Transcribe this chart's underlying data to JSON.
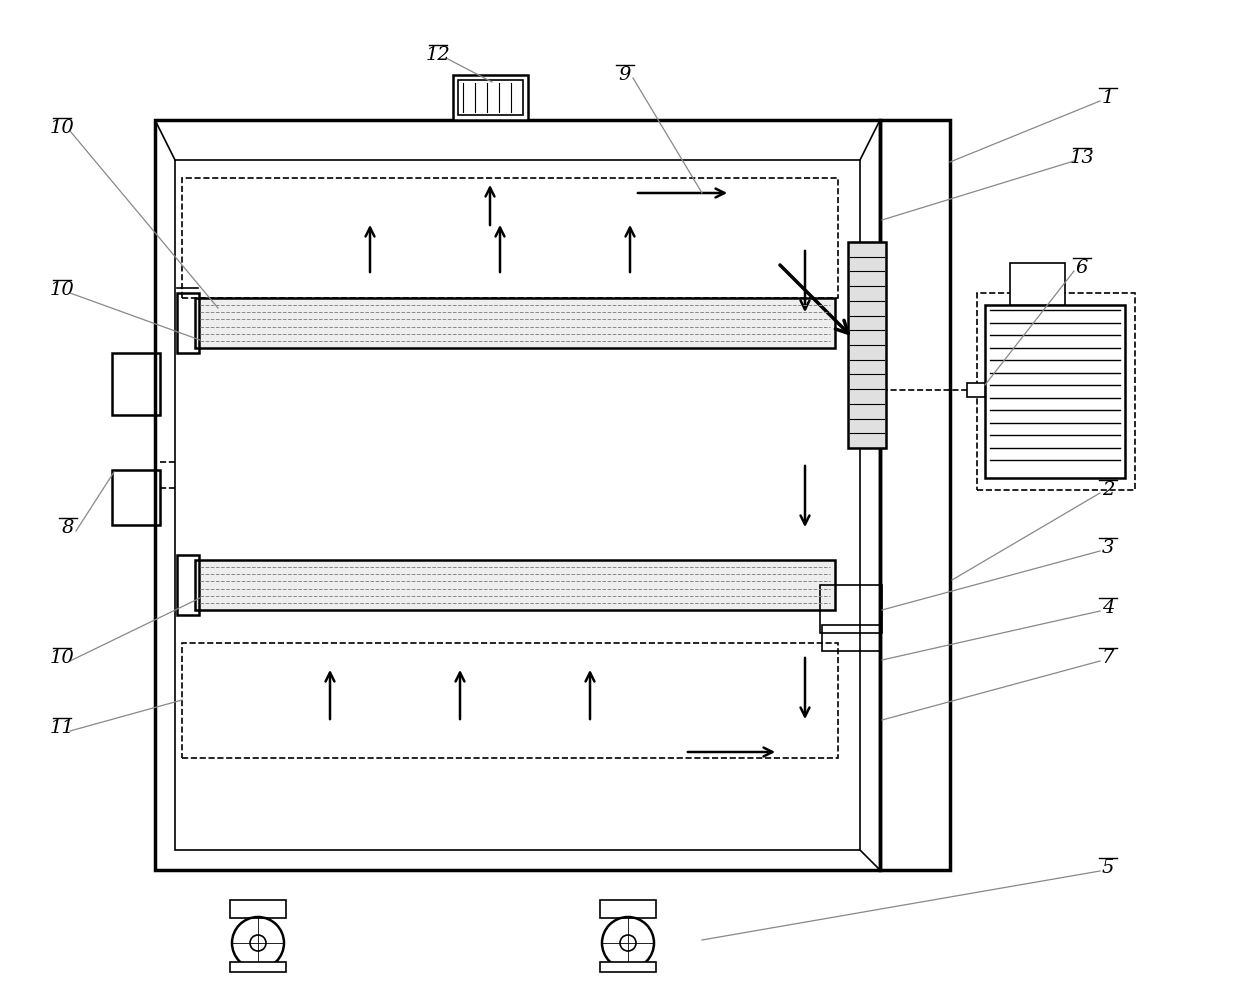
{
  "bg_color": "#ffffff",
  "line_color": "#000000",
  "gray_color": "#888888",
  "light_gray": "#cccccc",
  "figure_size": [
    12.4,
    9.89
  ],
  "dpi": 100
}
